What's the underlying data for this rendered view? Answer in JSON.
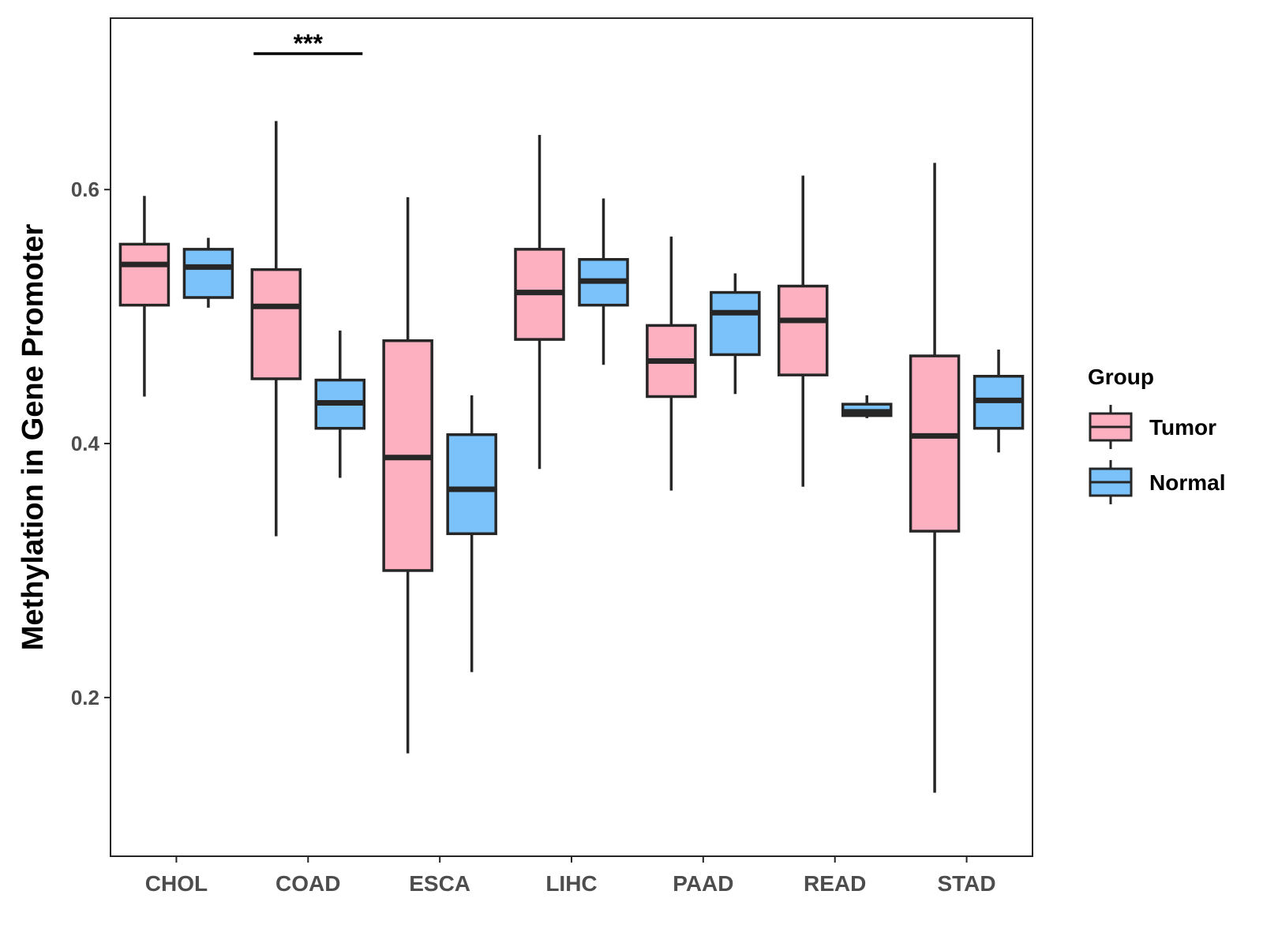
{
  "chart_data": {
    "type": "boxplot",
    "title": "",
    "xlabel": "",
    "ylabel": "Methylation in Gene Promoter",
    "ylim": [
      0.075,
      0.735
    ],
    "yticks": [
      0.2,
      0.4,
      0.6
    ],
    "ytick_labels": [
      "0.2",
      "0.4",
      "0.6"
    ],
    "categories": [
      "CHOL",
      "COAD",
      "ESCA",
      "LIHC",
      "PAAD",
      "READ",
      "STAD"
    ],
    "legend": {
      "title": "Group",
      "position": "right",
      "entries": [
        "Tumor",
        "Normal"
      ]
    },
    "colors": {
      "Tumor": "#FDB0C0",
      "Normal": "#7AC2F9",
      "outline": "#262626"
    },
    "series": [
      {
        "name": "Tumor",
        "boxes": [
          {
            "whislo": 0.437,
            "q1": 0.509,
            "med": 0.541,
            "q3": 0.557,
            "whishi": 0.595
          },
          {
            "whislo": 0.327,
            "q1": 0.451,
            "med": 0.508,
            "q3": 0.537,
            "whishi": 0.654
          },
          {
            "whislo": 0.156,
            "q1": 0.3,
            "med": 0.389,
            "q3": 0.481,
            "whishi": 0.594
          },
          {
            "whislo": 0.38,
            "q1": 0.482,
            "med": 0.519,
            "q3": 0.553,
            "whishi": 0.643
          },
          {
            "whislo": 0.363,
            "q1": 0.437,
            "med": 0.465,
            "q3": 0.493,
            "whishi": 0.563
          },
          {
            "whislo": 0.366,
            "q1": 0.454,
            "med": 0.497,
            "q3": 0.524,
            "whishi": 0.611
          },
          {
            "whislo": 0.125,
            "q1": 0.331,
            "med": 0.406,
            "q3": 0.469,
            "whishi": 0.621
          }
        ]
      },
      {
        "name": "Normal",
        "boxes": [
          {
            "whislo": 0.507,
            "q1": 0.515,
            "med": 0.539,
            "q3": 0.553,
            "whishi": 0.562
          },
          {
            "whislo": 0.373,
            "q1": 0.412,
            "med": 0.432,
            "q3": 0.45,
            "whishi": 0.489
          },
          {
            "whislo": 0.22,
            "q1": 0.329,
            "med": 0.364,
            "q3": 0.407,
            "whishi": 0.438
          },
          {
            "whislo": 0.462,
            "q1": 0.509,
            "med": 0.528,
            "q3": 0.545,
            "whishi": 0.593
          },
          {
            "whislo": 0.439,
            "q1": 0.47,
            "med": 0.503,
            "q3": 0.519,
            "whishi": 0.534
          },
          {
            "whislo": 0.42,
            "q1": 0.422,
            "med": 0.425,
            "q3": 0.431,
            "whishi": 0.438
          },
          {
            "whislo": 0.393,
            "q1": 0.412,
            "med": 0.434,
            "q3": 0.453,
            "whishi": 0.474
          }
        ]
      }
    ],
    "annotations": [
      {
        "category": "COAD",
        "text": "***",
        "y": 0.707
      }
    ]
  }
}
